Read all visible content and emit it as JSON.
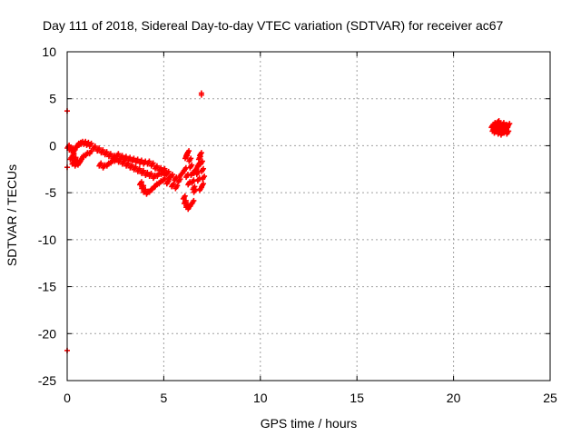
{
  "chart_data": {
    "type": "scatter",
    "title": "Day 111 of 2018, Sidereal Day-to-day VTEC variation (SDTVAR) for receiver ac67",
    "xlabel": "GPS time / hours",
    "ylabel": "SDTVAR / TECUs",
    "xlim": [
      0,
      25
    ],
    "ylim": [
      -25,
      10
    ],
    "xticks": [
      "0",
      "5",
      "10",
      "15",
      "20",
      "25"
    ],
    "yticks": [
      "10",
      "5",
      "0",
      "-5",
      "-10",
      "-15",
      "-20",
      "-25"
    ],
    "grid": true,
    "marker": "plus",
    "series": [
      {
        "name": "SDTVAR",
        "color": "#ff0000",
        "outliers": [
          {
            "x": 0.0,
            "y": 3.7
          },
          {
            "x": 0.0,
            "y": -2.3
          },
          {
            "x": 0.0,
            "y": -21.8
          },
          {
            "x": 6.95,
            "y": 5.4
          },
          {
            "x": 6.95,
            "y": 5.6
          }
        ],
        "points": [
          {
            "x": 0.05,
            "y": -0.1
          },
          {
            "x": 0.15,
            "y": -0.3
          },
          {
            "x": 0.25,
            "y": -0.4
          },
          {
            "x": 0.35,
            "y": -0.6
          },
          {
            "x": 0.45,
            "y": -0.2
          },
          {
            "x": 0.55,
            "y": 0.1
          },
          {
            "x": 0.65,
            "y": 0.2
          },
          {
            "x": 0.75,
            "y": 0.3
          },
          {
            "x": 0.9,
            "y": 0.3
          },
          {
            "x": 1.05,
            "y": 0.2
          },
          {
            "x": 1.2,
            "y": 0.1
          },
          {
            "x": 1.4,
            "y": -0.2
          },
          {
            "x": 1.6,
            "y": -0.4
          },
          {
            "x": 1.8,
            "y": -0.6
          },
          {
            "x": 2.0,
            "y": -0.8
          },
          {
            "x": 2.2,
            "y": -1.0
          },
          {
            "x": 2.4,
            "y": -1.2
          },
          {
            "x": 2.6,
            "y": -1.0
          },
          {
            "x": 2.8,
            "y": -1.2
          },
          {
            "x": 3.0,
            "y": -1.3
          },
          {
            "x": 3.2,
            "y": -1.4
          },
          {
            "x": 3.4,
            "y": -1.5
          },
          {
            "x": 3.6,
            "y": -1.6
          },
          {
            "x": 3.8,
            "y": -1.7
          },
          {
            "x": 4.0,
            "y": -1.8
          },
          {
            "x": 4.2,
            "y": -1.8
          },
          {
            "x": 4.4,
            "y": -2.0
          },
          {
            "x": 4.6,
            "y": -2.3
          },
          {
            "x": 4.8,
            "y": -2.5
          },
          {
            "x": 5.0,
            "y": -2.6
          },
          {
            "x": 5.2,
            "y": -2.9
          },
          {
            "x": 5.4,
            "y": -3.2
          },
          {
            "x": 5.6,
            "y": -3.5
          },
          {
            "x": 5.8,
            "y": -3.7
          },
          {
            "x": 0.3,
            "y": -1.0
          },
          {
            "x": 0.4,
            "y": -1.4
          },
          {
            "x": 0.5,
            "y": -1.7
          },
          {
            "x": 0.6,
            "y": -1.9
          },
          {
            "x": 0.7,
            "y": -1.6
          },
          {
            "x": 0.8,
            "y": -1.2
          },
          {
            "x": 1.0,
            "y": -0.9
          },
          {
            "x": 1.2,
            "y": -0.7
          },
          {
            "x": 0.2,
            "y": -1.3
          },
          {
            "x": 0.3,
            "y": -1.8
          },
          {
            "x": 0.45,
            "y": -2.0
          },
          {
            "x": 1.7,
            "y": -2.0
          },
          {
            "x": 1.9,
            "y": -2.2
          },
          {
            "x": 2.1,
            "y": -2.0
          },
          {
            "x": 2.3,
            "y": -1.7
          },
          {
            "x": 2.5,
            "y": -1.5
          },
          {
            "x": 2.7,
            "y": -1.6
          },
          {
            "x": 2.9,
            "y": -1.8
          },
          {
            "x": 3.1,
            "y": -2.0
          },
          {
            "x": 3.3,
            "y": -2.2
          },
          {
            "x": 3.5,
            "y": -2.4
          },
          {
            "x": 3.7,
            "y": -2.6
          },
          {
            "x": 3.9,
            "y": -2.8
          },
          {
            "x": 4.1,
            "y": -3.0
          },
          {
            "x": 4.3,
            "y": -3.1
          },
          {
            "x": 4.5,
            "y": -3.3
          },
          {
            "x": 4.7,
            "y": -3.1
          },
          {
            "x": 4.9,
            "y": -2.9
          },
          {
            "x": 5.1,
            "y": -3.0
          },
          {
            "x": 5.3,
            "y": -3.4
          },
          {
            "x": 3.8,
            "y": -4.0
          },
          {
            "x": 3.9,
            "y": -4.4
          },
          {
            "x": 4.0,
            "y": -4.8
          },
          {
            "x": 4.15,
            "y": -5.0
          },
          {
            "x": 4.3,
            "y": -4.8
          },
          {
            "x": 4.45,
            "y": -4.5
          },
          {
            "x": 4.6,
            "y": -4.2
          },
          {
            "x": 4.8,
            "y": -3.9
          },
          {
            "x": 5.0,
            "y": -3.6
          },
          {
            "x": 5.2,
            "y": -3.9
          },
          {
            "x": 5.45,
            "y": -4.2
          },
          {
            "x": 5.65,
            "y": -4.4
          },
          {
            "x": 5.85,
            "y": -3.2
          },
          {
            "x": 6.0,
            "y": -2.8
          },
          {
            "x": 6.05,
            "y": -5.5
          },
          {
            "x": 6.1,
            "y": -6.0
          },
          {
            "x": 6.2,
            "y": -6.4
          },
          {
            "x": 6.3,
            "y": -6.6
          },
          {
            "x": 6.4,
            "y": -6.3
          },
          {
            "x": 6.5,
            "y": -6.0
          },
          {
            "x": 6.15,
            "y": -1.2
          },
          {
            "x": 6.2,
            "y": -0.9
          },
          {
            "x": 6.25,
            "y": -0.7
          },
          {
            "x": 6.35,
            "y": -1.5
          },
          {
            "x": 6.4,
            "y": -2.2
          },
          {
            "x": 6.45,
            "y": -3.0
          },
          {
            "x": 6.5,
            "y": -3.8
          },
          {
            "x": 6.55,
            "y": -4.5
          },
          {
            "x": 6.1,
            "y": -2.5
          },
          {
            "x": 6.2,
            "y": -3.2
          },
          {
            "x": 6.3,
            "y": -4.0
          },
          {
            "x": 6.6,
            "y": -2.8
          },
          {
            "x": 6.7,
            "y": -2.4
          },
          {
            "x": 6.8,
            "y": -2.0
          },
          {
            "x": 6.85,
            "y": -1.3
          },
          {
            "x": 6.9,
            "y": -0.9
          },
          {
            "x": 6.95,
            "y": -1.8
          },
          {
            "x": 7.0,
            "y": -2.6
          },
          {
            "x": 7.05,
            "y": -3.4
          },
          {
            "x": 7.0,
            "y": -4.2
          },
          {
            "x": 6.9,
            "y": -4.6
          },
          {
            "x": 6.8,
            "y": -3.6
          },
          {
            "x": 6.75,
            "y": -2.9
          },
          {
            "x": 6.6,
            "y": -4.8
          },
          {
            "x": 22.0,
            "y": 2.1
          },
          {
            "x": 22.05,
            "y": 1.7
          },
          {
            "x": 22.1,
            "y": 2.3
          },
          {
            "x": 22.15,
            "y": 1.5
          },
          {
            "x": 22.2,
            "y": 2.0
          },
          {
            "x": 22.25,
            "y": 2.4
          },
          {
            "x": 22.3,
            "y": 1.8
          },
          {
            "x": 22.35,
            "y": 1.4
          },
          {
            "x": 22.4,
            "y": 2.2
          },
          {
            "x": 22.45,
            "y": 1.9
          },
          {
            "x": 22.5,
            "y": 1.6
          },
          {
            "x": 22.55,
            "y": 2.3
          },
          {
            "x": 22.6,
            "y": 2.0
          },
          {
            "x": 22.65,
            "y": 1.5
          },
          {
            "x": 22.7,
            "y": 2.1
          },
          {
            "x": 22.75,
            "y": 1.8
          },
          {
            "x": 22.8,
            "y": 1.4
          },
          {
            "x": 22.85,
            "y": 2.2
          },
          {
            "x": 22.5,
            "y": 1.3
          },
          {
            "x": 22.3,
            "y": 2.5
          }
        ]
      }
    ]
  }
}
